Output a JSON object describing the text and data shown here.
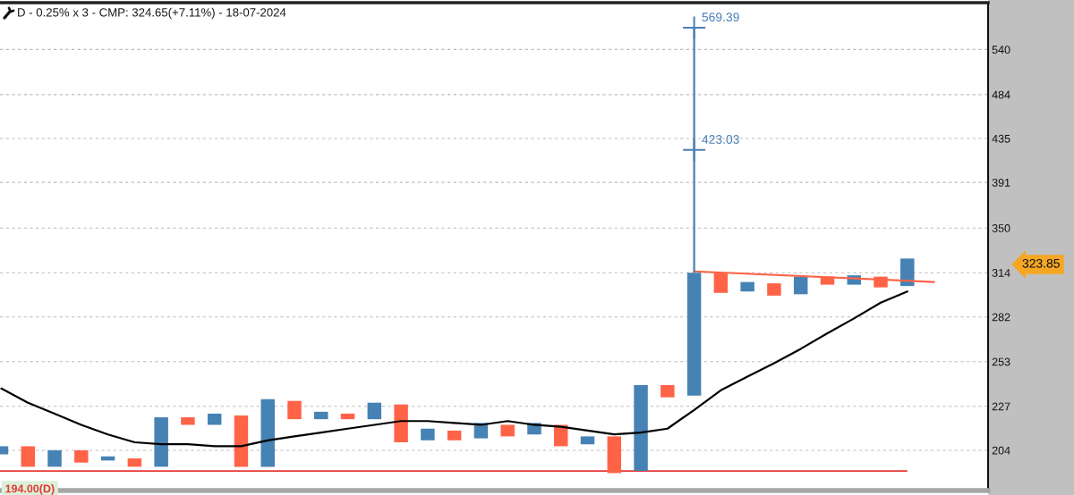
{
  "chart_data": {
    "type": "bar",
    "title": "D - 0.25% x 3 - CMP: 324.65(+7.11%) - 18-07-2024",
    "categories": [
      null,
      null,
      null,
      null,
      null,
      null,
      null,
      null,
      null,
      null,
      null,
      null,
      null,
      null,
      null,
      null,
      null,
      null,
      null,
      null,
      null,
      null,
      null,
      null,
      null,
      null,
      null,
      null,
      null,
      null,
      null,
      null,
      null,
      null,
      null,
      null,
      null
    ],
    "log": "y",
    "ylim": [
      185,
      605
    ],
    "yticks": [
      204,
      227,
      253,
      282,
      314,
      350,
      391,
      435,
      484,
      540
    ],
    "grid": "y",
    "tick_labels": "y",
    "series": [
      {
        "base": [
          202,
          196,
          196,
          198,
          199,
          196,
          196,
          217,
          217,
          196,
          196,
          220,
          220,
          220,
          220,
          208,
          209,
          209,
          210,
          211,
          212,
          206,
          207,
          193,
          194,
          232,
          233,
          299,
          300,
          297,
          298,
          305,
          305,
          303,
          304,
          null,
          null
        ],
        "values": [
          4,
          10,
          8,
          6,
          2,
          4,
          25,
          4,
          6,
          26,
          35,
          10,
          4,
          3,
          9,
          20,
          6,
          5,
          8,
          6,
          6,
          11,
          4,
          18,
          45,
          7,
          81,
          15,
          7,
          9,
          13,
          6,
          7,
          8,
          21,
          null,
          null
        ],
        "colors": [
          "#4682b4",
          "#ff6347",
          "#4682b4",
          "#ff6347",
          "#4682b4",
          "#ff6347",
          "#4682b4",
          "#ff6347",
          "#4682b4",
          "#ff6347",
          "#4682b4",
          "#ff6347",
          "#4682b4",
          "#ff6347",
          "#4682b4",
          "#ff6347",
          "#4682b4",
          "#ff6347",
          "#4682b4",
          "#ff6347",
          "#4682b4",
          "#ff6347",
          "#4682b4",
          "#ff6347",
          "#4682b4",
          "#ff6347",
          "#4682b4",
          "#ff6347",
          "#4682b4",
          "#ff6347",
          "#4682b4",
          "#ff6347",
          "#4682b4",
          "#ff6347",
          "#4682b4",
          null,
          null
        ]
      },
      {
        "type": "line",
        "color": "#000000",
        "values": [
          237,
          229,
          223,
          217,
          212,
          208,
          207,
          207,
          206,
          206,
          209,
          211,
          213,
          215,
          217,
          219,
          219,
          218,
          217,
          219,
          217,
          216,
          214,
          212,
          213,
          215,
          225,
          236,
          244,
          252,
          261,
          271,
          281,
          292,
          300,
          null,
          null
        ]
      },
      {
        "type": "line",
        "color": "#ff6347",
        "values": [
          null,
          null,
          null,
          null,
          null,
          null,
          null,
          null,
          null,
          null,
          null,
          null,
          null,
          null,
          null,
          null,
          null,
          null,
          null,
          null,
          null,
          null,
          null,
          null,
          null,
          null,
          315,
          null,
          null,
          null,
          null,
          null,
          null,
          null,
          null,
          307,
          null
        ]
      },
      {
        "type": "scatter",
        "color": "#4a7fb5",
        "marker": "cross",
        "values": [
          null,
          null,
          null,
          null,
          null,
          null,
          null,
          null,
          null,
          null,
          null,
          null,
          null,
          null,
          null,
          null,
          null,
          null,
          null,
          null,
          null,
          null,
          null,
          null,
          null,
          null,
          569.39,
          null,
          null,
          null,
          null,
          null,
          null,
          null,
          null,
          null,
          null
        ],
        "errors": [
          null,
          null,
          null,
          null,
          null,
          null,
          null,
          null,
          null,
          null,
          null,
          null,
          null,
          null,
          null,
          null,
          null,
          null,
          null,
          null,
          null,
          null,
          null,
          null,
          null,
          null,
          [
            314,
            569.39
          ],
          null,
          null,
          null,
          null,
          null,
          null,
          null,
          null,
          null,
          null
        ],
        "value_labels": [
          null,
          null,
          null,
          null,
          null,
          null,
          null,
          null,
          null,
          null,
          null,
          null,
          null,
          null,
          null,
          null,
          null,
          null,
          null,
          null,
          null,
          null,
          null,
          null,
          null,
          null,
          "569.39",
          null,
          null,
          null,
          null,
          null,
          null,
          null,
          null,
          null,
          null
        ]
      },
      {
        "type": "scatter",
        "color": "#4a7fb5",
        "marker": "cross",
        "values": [
          null,
          null,
          null,
          null,
          null,
          null,
          null,
          null,
          null,
          null,
          null,
          null,
          null,
          null,
          null,
          null,
          null,
          null,
          null,
          null,
          null,
          null,
          null,
          null,
          null,
          null,
          423.03,
          null,
          null,
          null,
          null,
          null,
          null,
          null,
          null,
          null,
          null
        ],
        "value_labels": [
          null,
          null,
          null,
          null,
          null,
          null,
          null,
          null,
          null,
          null,
          null,
          null,
          null,
          null,
          null,
          null,
          null,
          null,
          null,
          null,
          null,
          null,
          null,
          null,
          null,
          null,
          "423.03",
          null,
          null,
          null,
          null,
          null,
          null,
          null,
          null,
          null,
          null
        ]
      }
    ],
    "ref_lines": [
      {
        "axis": "y",
        "value": 194,
        "label": "194.00(D)",
        "color": "#e53935"
      }
    ],
    "annotations": [
      "323.85"
    ]
  }
}
